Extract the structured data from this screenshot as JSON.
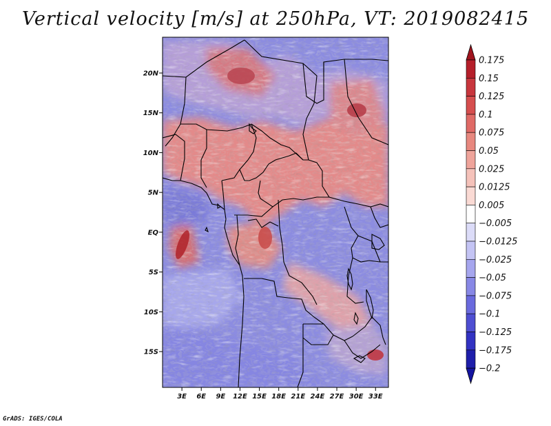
{
  "title": "Vertical velocity [m/s] at 250hPa, VT: 2019082415",
  "footer": "GrADS: IGES/COLA",
  "map": {
    "variable": "Vertical velocity",
    "units": "m/s",
    "level": "250hPa",
    "valid_time": "2019082415",
    "lon_range": [
      0,
      35
    ],
    "lat_range": [
      -19.5,
      24.5
    ],
    "lat_ticks": [
      {
        "value": 20,
        "label": "20N"
      },
      {
        "value": 15,
        "label": "15N"
      },
      {
        "value": 10,
        "label": "10N"
      },
      {
        "value": 5,
        "label": "5N"
      },
      {
        "value": 0,
        "label": "EQ"
      },
      {
        "value": -5,
        "label": "5S"
      },
      {
        "value": -10,
        "label": "10S"
      },
      {
        "value": -15,
        "label": "15S"
      }
    ],
    "lon_ticks": [
      {
        "value": 3,
        "label": "3E"
      },
      {
        "value": 6,
        "label": "6E"
      },
      {
        "value": 9,
        "label": "9E"
      },
      {
        "value": 12,
        "label": "12E"
      },
      {
        "value": 15,
        "label": "15E"
      },
      {
        "value": 18,
        "label": "18E"
      },
      {
        "value": 21,
        "label": "21E"
      },
      {
        "value": 24,
        "label": "24E"
      },
      {
        "value": 27,
        "label": "27E"
      },
      {
        "value": 30,
        "label": "30E"
      },
      {
        "value": 33,
        "label": "33E"
      }
    ]
  },
  "colorbar": {
    "labels": [
      "0.175",
      "0.15",
      "0.125",
      "0.1",
      "0.075",
      "0.05",
      "0.025",
      "0.0125",
      "0.005",
      "−0.005",
      "−0.0125",
      "−0.025",
      "−0.05",
      "−0.075",
      "−0.1",
      "−0.125",
      "−0.175",
      "−0.2"
    ],
    "colors": [
      "#a0141e",
      "#b51f2a",
      "#c8363d",
      "#d64e4e",
      "#e06a66",
      "#e8887f",
      "#efa49b",
      "#f5c2ba",
      "#fadad4",
      "#ffffff",
      "#dcdcf8",
      "#c4c4f4",
      "#a6a6ee",
      "#8888e6",
      "#6a6ade",
      "#4e4ed2",
      "#3232c2",
      "#1e1eaa",
      "#1414a0"
    ],
    "top_arrow_color": "#a0141e",
    "bottom_arrow_color": "#1414a0"
  }
}
